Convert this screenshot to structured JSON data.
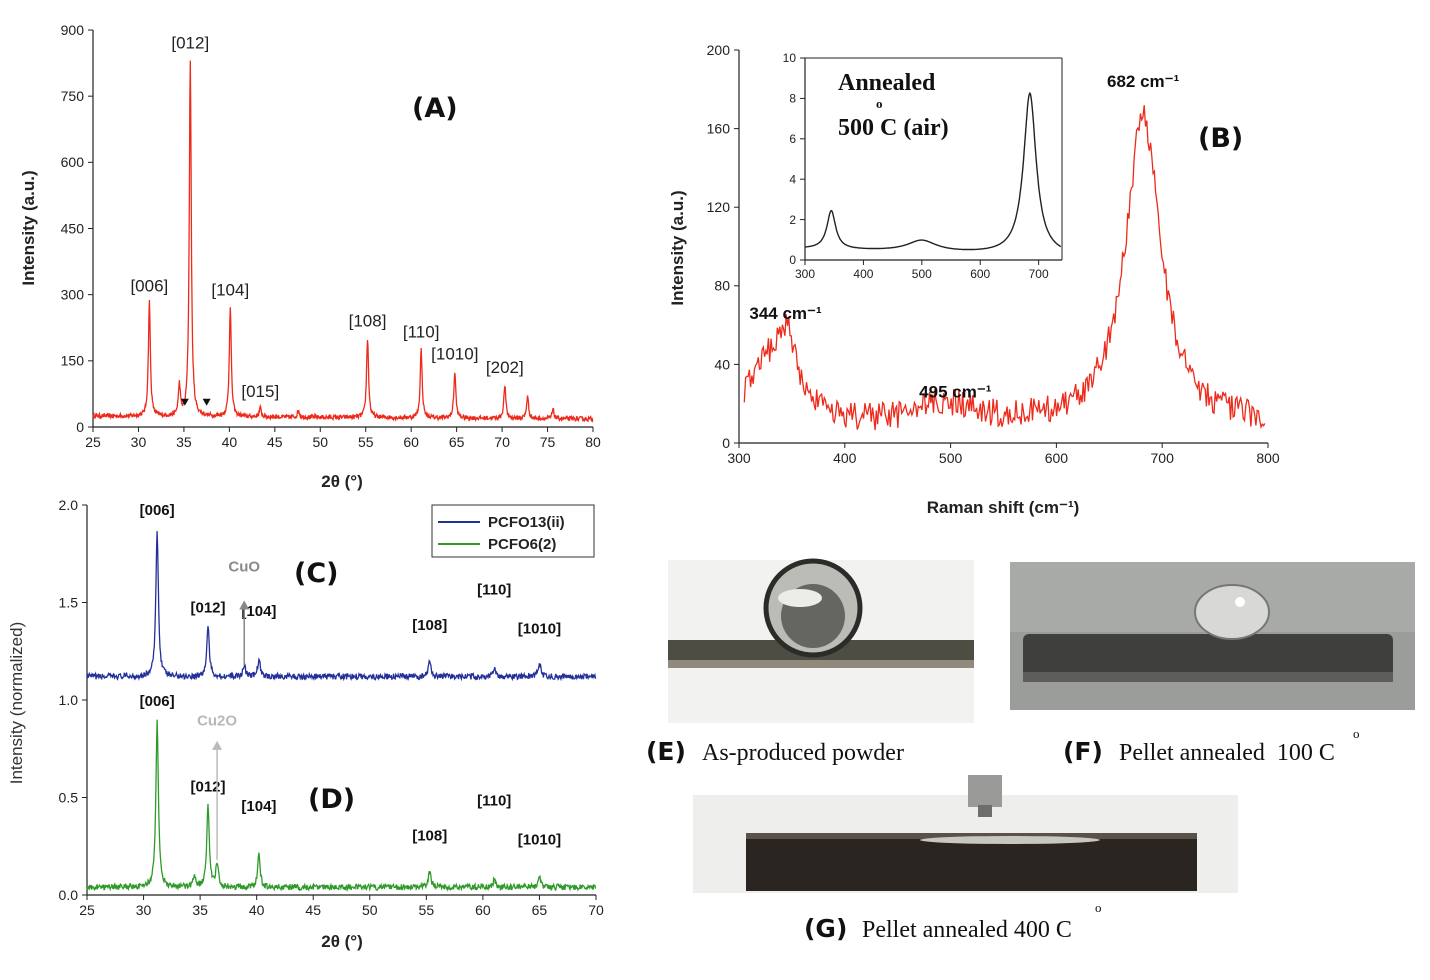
{
  "chart_data": [
    {
      "panel": "(A)",
      "type": "line",
      "xlabel": "2θ (°)",
      "ylabel": "Intensity (a.u.)",
      "xlim": [
        25,
        80
      ],
      "ylim": [
        0,
        900
      ],
      "x_ticks": [
        "25",
        "30",
        "35",
        "40",
        "45",
        "50",
        "55",
        "60",
        "65",
        "70",
        "75",
        "80"
      ],
      "y_ticks": [
        "0",
        "150",
        "300",
        "450",
        "600",
        "750",
        "900"
      ],
      "grid": false,
      "color": "#ee2a1b",
      "baseline": 25,
      "peaks": [
        {
          "x": 31.2,
          "y": 285,
          "label": "[006]"
        },
        {
          "x": 34.5,
          "y": 95,
          "label": ""
        },
        {
          "x": 35.7,
          "y": 835,
          "label": "[012]"
        },
        {
          "x": 40.1,
          "y": 275,
          "label": "[104]"
        },
        {
          "x": 43.4,
          "y": 45,
          "label": "[015]"
        },
        {
          "x": 47.6,
          "y": 40,
          "label": ""
        },
        {
          "x": 55.2,
          "y": 205,
          "label": "[108]"
        },
        {
          "x": 61.1,
          "y": 180,
          "label": "[110]"
        },
        {
          "x": 64.8,
          "y": 130,
          "label": "[1010]"
        },
        {
          "x": 70.3,
          "y": 100,
          "label": "[202]"
        },
        {
          "x": 72.8,
          "y": 75,
          "label": ""
        },
        {
          "x": 75.6,
          "y": 45,
          "label": ""
        }
      ],
      "impurity_markers": [
        35.1,
        37.5
      ]
    },
    {
      "panel": "(B)",
      "type": "line",
      "xlabel": "Raman shift (cm⁻¹)",
      "ylabel": "Intensity (a.u.)",
      "xlim": [
        300,
        800
      ],
      "ylim": [
        0,
        200
      ],
      "x_ticks": [
        "300",
        "400",
        "500",
        "600",
        "700",
        "800"
      ],
      "y_ticks": [
        "0",
        "40",
        "80",
        "120",
        "160",
        "200"
      ],
      "grid": false,
      "color": "#ee2a1b",
      "bands": [
        {
          "x": 344,
          "y": 52,
          "label": "344 cm⁻¹"
        },
        {
          "x": 495,
          "y": 18,
          "label": "495 cm⁻¹"
        },
        {
          "x": 682,
          "y": 173,
          "label": "682 cm⁻¹"
        }
      ],
      "inset": {
        "title_line1": "Annealed",
        "title_line2": "500 C (air)",
        "degree": "o",
        "xlim": [
          300,
          740
        ],
        "ylim": [
          0,
          10
        ],
        "x_ticks": [
          "300",
          "400",
          "500",
          "600",
          "700"
        ],
        "y_ticks": [
          "0",
          "2",
          "4",
          "6",
          "8",
          "10"
        ],
        "color": "#222222",
        "bands": [
          {
            "x": 345,
            "y": 2.4
          },
          {
            "x": 500,
            "y": 1.0
          },
          {
            "x": 685,
            "y": 8.4
          }
        ]
      }
    },
    {
      "panel": "(C)/(D)",
      "type": "line",
      "xlabel": "2θ (°)",
      "ylabel": "Intensity (normalized)",
      "xlim": [
        25,
        70
      ],
      "ylim": [
        0.0,
        2.0
      ],
      "x_ticks": [
        "25",
        "30",
        "35",
        "40",
        "45",
        "50",
        "55",
        "60",
        "65",
        "70"
      ],
      "y_ticks": [
        "0.0",
        "0.5",
        "1.0",
        "1.5",
        "2.0"
      ],
      "grid": false,
      "legend_position": "top-right",
      "series": [
        {
          "name": "PCFO13(ii)",
          "color": "#23309a",
          "offset": 1.12,
          "peaks": [
            {
              "x": 31.2,
              "y": 0.76,
              "label": "[006]"
            },
            {
              "x": 35.7,
              "y": 0.26,
              "label": "[012]"
            },
            {
              "x": 40.2,
              "y": 0.09,
              "label": "[104]"
            },
            {
              "x": 38.9,
              "y": 0.06,
              "label": ""
            },
            {
              "x": 55.3,
              "y": 0.08,
              "label": "[108]"
            },
            {
              "x": 61.0,
              "y": 0.04,
              "label": "[110]"
            },
            {
              "x": 65.0,
              "y": 0.07,
              "label": "[1010]"
            }
          ]
        },
        {
          "name": "PCFO6(2)",
          "color": "#2f9a2a",
          "offset": 0.04,
          "peaks": [
            {
              "x": 31.2,
              "y": 0.86,
              "label": "[006]"
            },
            {
              "x": 34.5,
              "y": 0.06,
              "label": ""
            },
            {
              "x": 35.7,
              "y": 0.42,
              "label": "[012]"
            },
            {
              "x": 36.5,
              "y": 0.12,
              "label": ""
            },
            {
              "x": 40.2,
              "y": 0.17,
              "label": "[104]"
            },
            {
              "x": 55.3,
              "y": 0.08,
              "label": "[108]"
            },
            {
              "x": 61.0,
              "y": 0.04,
              "label": "[110]"
            },
            {
              "x": 65.0,
              "y": 0.05,
              "label": "[1010]"
            }
          ]
        }
      ],
      "annotations": [
        {
          "text": "CuO",
          "x": 38.9
        },
        {
          "text": "Cu2O",
          "x": 36.5
        }
      ],
      "panel_labels": [
        "(C)",
        "(D)"
      ]
    }
  ],
  "photos": {
    "E": {
      "letter": "(E)",
      "caption": "As-produced powder"
    },
    "F": {
      "letter": "(F)",
      "caption": "Pellet annealed  100 C",
      "degree": "o"
    },
    "G": {
      "letter": "(G)",
      "caption": "Pellet annealed 400 C",
      "degree": "o"
    }
  }
}
